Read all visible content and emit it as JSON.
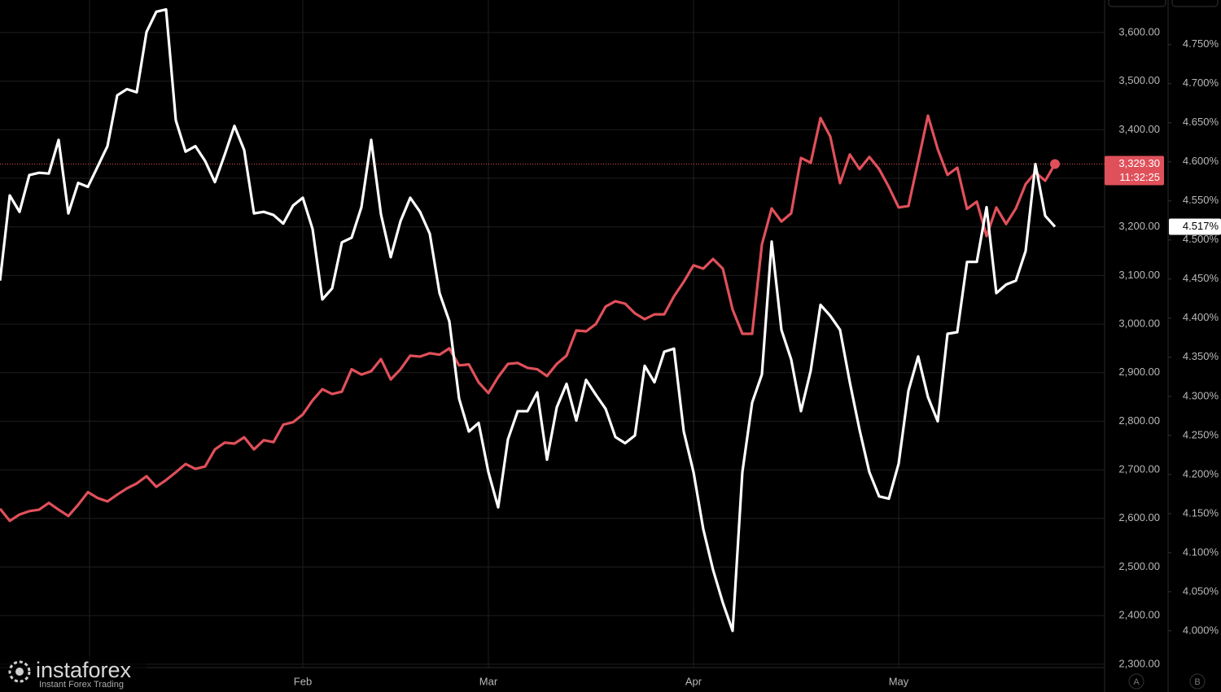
{
  "chart_data": {
    "type": "line",
    "categories": [
      null,
      null,
      null,
      null,
      null,
      null,
      null,
      null,
      null,
      null,
      null,
      null,
      null,
      null,
      null,
      null,
      null,
      null,
      null,
      null,
      null,
      null,
      null,
      null,
      null,
      null,
      null,
      null,
      null,
      null,
      null,
      "Feb",
      null,
      null,
      null,
      null,
      null,
      null,
      null,
      null,
      null,
      null,
      null,
      null,
      null,
      null,
      null,
      null,
      null,
      null,
      "Mar",
      null,
      null,
      null,
      null,
      null,
      null,
      null,
      null,
      null,
      null,
      null,
      null,
      null,
      null,
      null,
      null,
      null,
      null,
      null,
      null,
      "Apr",
      null,
      null,
      null,
      null,
      null,
      null,
      null,
      null,
      null,
      null,
      null,
      null,
      null,
      null,
      null,
      null,
      null,
      null,
      null,
      null,
      "May",
      null,
      null,
      null,
      null,
      null,
      null,
      null,
      null,
      null,
      null,
      null,
      null,
      null,
      null,
      null,
      null
    ],
    "series": [
      {
        "color": "#e0505a",
        "axis": "y",
        "values": [
          2620,
          2595,
          2608,
          2615,
          2618,
          2632,
          2618,
          2605,
          2628,
          2654,
          2642,
          2635,
          2649,
          2662,
          2672,
          2687,
          2665,
          2679,
          2695,
          2712,
          2702,
          2707,
          2742,
          2756,
          2754,
          2767,
          2742,
          2761,
          2757,
          2793,
          2798,
          2814,
          2843,
          2866,
          2856,
          2861,
          2907,
          2896,
          2903,
          2928,
          2886,
          2907,
          2935,
          2933,
          2940,
          2937,
          2950,
          2915,
          2917,
          2880,
          2858,
          2891,
          2918,
          2920,
          2910,
          2907,
          2893,
          2918,
          2935,
          2987,
          2985,
          3000,
          3036,
          3047,
          3042,
          3022,
          3010,
          3020,
          3020,
          3057,
          3087,
          3121,
          3114,
          3134,
          3114,
          3030,
          2980,
          2980,
          3164,
          3238,
          3211,
          3228,
          3342,
          3332,
          3424,
          3386,
          3290,
          3349,
          3319,
          3344,
          3319,
          3282,
          3240,
          3243,
          3335,
          3429,
          3360,
          3307,
          3322,
          3237,
          3252,
          3181,
          3240,
          3206,
          3238,
          3288,
          3312,
          3295,
          3329.3
        ]
      },
      {
        "color": "#ffffff",
        "axis": "y2",
        "values": [
          4.448,
          4.557,
          4.536,
          4.583,
          4.586,
          4.585,
          4.628,
          4.534,
          4.573,
          4.568,
          4.594,
          4.62,
          4.685,
          4.693,
          4.689,
          4.766,
          4.792,
          4.795,
          4.653,
          4.613,
          4.62,
          4.601,
          4.574,
          4.609,
          4.646,
          4.615,
          4.534,
          4.536,
          4.532,
          4.521,
          4.544,
          4.554,
          4.514,
          4.424,
          4.438,
          4.497,
          4.503,
          4.542,
          4.628,
          4.533,
          4.478,
          4.524,
          4.554,
          4.536,
          4.508,
          4.432,
          4.396,
          4.297,
          4.255,
          4.266,
          4.203,
          4.158,
          4.245,
          4.281,
          4.281,
          4.305,
          4.219,
          4.286,
          4.316,
          4.269,
          4.321,
          4.302,
          4.284,
          4.248,
          4.24,
          4.25,
          4.339,
          4.318,
          4.357,
          4.361,
          4.255,
          4.203,
          4.13,
          4.078,
          4.036,
          4.0,
          4.203,
          4.292,
          4.328,
          4.498,
          4.385,
          4.347,
          4.281,
          4.333,
          4.417,
          4.403,
          4.385,
          4.318,
          4.257,
          4.203,
          4.172,
          4.169,
          4.214,
          4.307,
          4.351,
          4.299,
          4.268,
          4.38,
          4.382,
          4.472,
          4.472,
          4.542,
          4.432,
          4.443,
          4.448,
          4.486,
          4.597,
          4.531,
          4.517
        ]
      }
    ],
    "ylim": [
      2293,
      3667
    ],
    "yticks": [
      {
        "value": 2300,
        "label": "2,300.00"
      },
      {
        "value": 2400,
        "label": "2,400.00"
      },
      {
        "value": 2500,
        "label": "2,500.00"
      },
      {
        "value": 2600,
        "label": "2,600.00"
      },
      {
        "value": 2700,
        "label": "2,700.00"
      },
      {
        "value": 2800,
        "label": "2,800.00"
      },
      {
        "value": 2900,
        "label": "2,900.00"
      },
      {
        "value": 3000,
        "label": "3,000.00"
      },
      {
        "value": 3100,
        "label": "3,100.00"
      },
      {
        "value": 3200,
        "label": "3,200.00"
      },
      {
        "value": 3300,
        "label": "3,300.00"
      },
      {
        "value": 3400,
        "label": "3,400.00"
      },
      {
        "value": 3500,
        "label": "3,500.00"
      },
      {
        "value": 3600,
        "label": "3,600.00"
      }
    ],
    "y2lim": [
      3.953,
      4.807
    ],
    "y2ticks": [
      {
        "value": 4.0,
        "label": "4.000%"
      },
      {
        "value": 4.05,
        "label": "4.050%"
      },
      {
        "value": 4.1,
        "label": "4.100%"
      },
      {
        "value": 4.15,
        "label": "4.150%"
      },
      {
        "value": 4.2,
        "label": "4.200%"
      },
      {
        "value": 4.25,
        "label": "4.250%"
      },
      {
        "value": 4.3,
        "label": "4.300%"
      },
      {
        "value": 4.35,
        "label": "4.350%"
      },
      {
        "value": 4.4,
        "label": "4.400%"
      },
      {
        "value": 4.45,
        "label": "4.450%"
      },
      {
        "value": 4.5,
        "label": "4.500%"
      },
      {
        "value": 4.55,
        "label": "4.550%"
      },
      {
        "value": 4.6,
        "label": "4.600%"
      },
      {
        "value": 4.65,
        "label": "4.650%"
      },
      {
        "value": 4.7,
        "label": "4.700%"
      },
      {
        "value": 4.75,
        "label": "4.750%"
      }
    ],
    "grid": true,
    "badges": {
      "price": "3,329.30",
      "countdown": "11:32:25",
      "yield": "4.517%"
    },
    "axis_buttons": [
      "A",
      "B"
    ],
    "watermark": {
      "brand": "instaforex",
      "tagline": "Instant Forex Trading"
    }
  }
}
